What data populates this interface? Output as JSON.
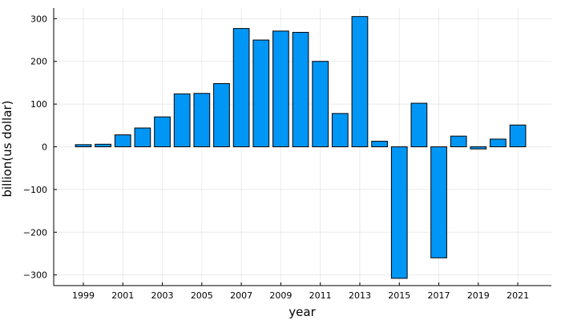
{
  "chart_data": {
    "type": "bar",
    "xlabel": "year",
    "ylabel": "billion(us dollar)",
    "x": [
      1999,
      2000,
      2001,
      2002,
      2003,
      2004,
      2005,
      2006,
      2007,
      2008,
      2009,
      2010,
      2011,
      2012,
      2013,
      2014,
      2015,
      2016,
      2017,
      2018,
      2019,
      2020,
      2021
    ],
    "values": [
      5,
      6,
      28,
      44,
      70,
      124,
      125,
      148,
      277,
      250,
      271,
      268,
      200,
      78,
      305,
      13,
      -308,
      102,
      -260,
      25,
      -5,
      18,
      51
    ],
    "x_ticks": [
      1999,
      2001,
      2003,
      2005,
      2007,
      2009,
      2011,
      2013,
      2015,
      2017,
      2019,
      2021
    ],
    "y_ticks": [
      -300,
      -200,
      -100,
      0,
      100,
      200,
      300
    ],
    "xlim": [
      1997.5,
      2022.7
    ],
    "ylim": [
      -325,
      325
    ],
    "grid": true,
    "legend": "none",
    "bar_color": "#0096f5"
  }
}
